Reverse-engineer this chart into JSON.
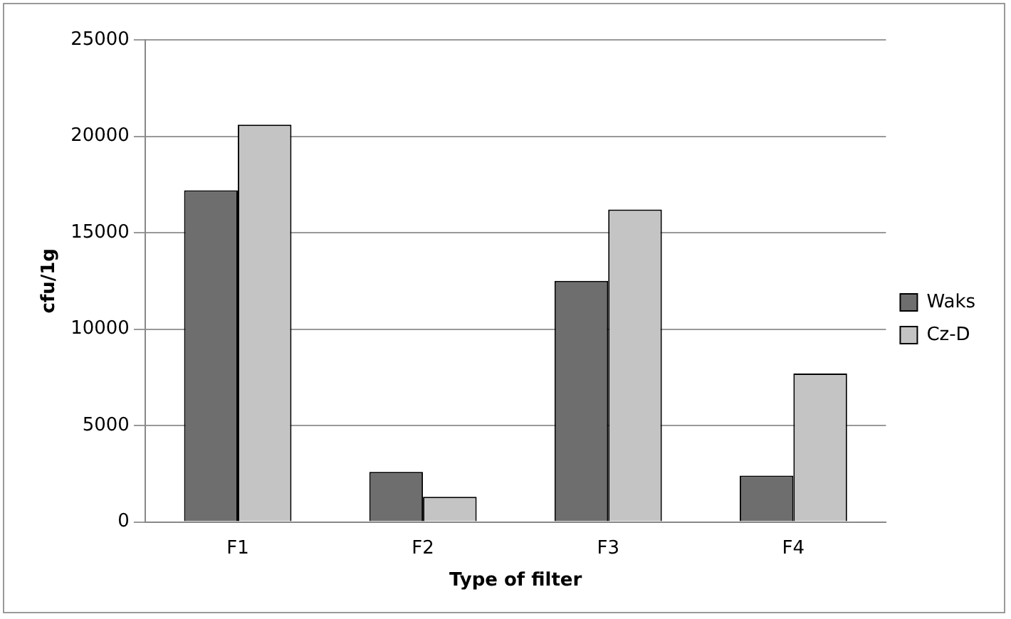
{
  "chart_data": {
    "type": "bar",
    "xlabel": "Type of filter",
    "ylabel": "cfu/1g",
    "categories": [
      "F1",
      "F2",
      "F3",
      "F4"
    ],
    "series": [
      {
        "name": "Waks",
        "color": "#6e6e6e",
        "values": [
          17200,
          2600,
          12500,
          2400
        ]
      },
      {
        "name": "Cz-D",
        "color": "#c4c4c4",
        "values": [
          20600,
          1300,
          16200,
          7700
        ]
      }
    ],
    "ylim": [
      0,
      25000
    ],
    "yticks": [
      0,
      5000,
      10000,
      15000,
      20000,
      25000
    ],
    "grid": "y",
    "legend": "right"
  }
}
